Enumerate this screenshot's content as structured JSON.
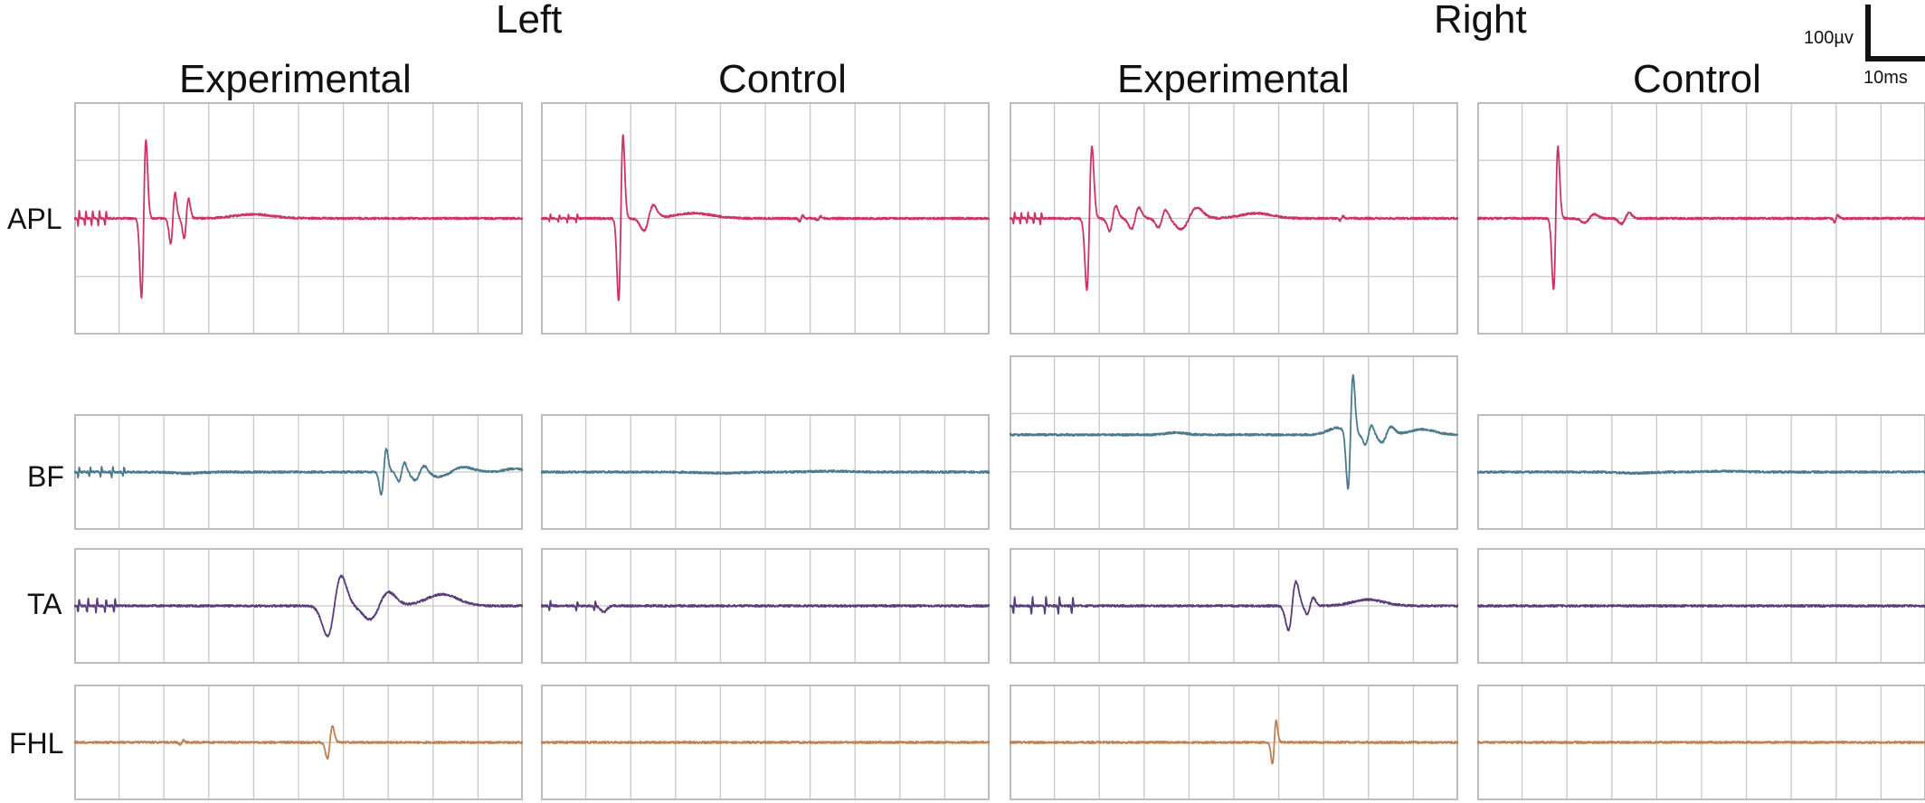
{
  "figure": {
    "sides": [
      "Left",
      "Right"
    ],
    "conditions": [
      "Experimental",
      "Control",
      "Experimental",
      "Control"
    ],
    "muscles": [
      "APL",
      "BF",
      "TA",
      "FHL"
    ],
    "scale_bar": {
      "voltage": "100µv",
      "time": "10ms"
    }
  },
  "colors": {
    "APL": "#cc3366",
    "BF": "#4a7a8c",
    "TA": "#5a3d7a",
    "FHL": "#c08050",
    "grid": "#c8c8c8",
    "frame": "#bdbdbd"
  },
  "chart_data": {
    "type": "line",
    "x_unit": "ms",
    "y_unit": "µV",
    "grid": true,
    "panels": [
      {
        "muscle": "APL",
        "side": "Left",
        "condition": "Experimental",
        "stim_artifacts": {
          "t": [
            1,
            2.5,
            4,
            5.5,
            7
          ],
          "amp": 20
        },
        "waves": [
          {
            "t": 15.5,
            "amp": 220,
            "w": 0.7,
            "shape": "biphasic"
          },
          {
            "t": 22,
            "amp": 70,
            "w": 0.7,
            "shape": "biphasic"
          },
          {
            "t": 25,
            "amp": 55,
            "w": 0.7,
            "shape": "biphasic"
          },
          {
            "t": 40,
            "amp": 8,
            "w": 6,
            "shape": "gauss"
          }
        ]
      },
      {
        "muscle": "APL",
        "side": "Left",
        "condition": "Control",
        "stim_artifacts": {
          "t": [
            2,
            4,
            6,
            8
          ],
          "amp": 10
        },
        "waves": [
          {
            "t": 17.8,
            "amp": 230,
            "w": 0.7,
            "shape": "biphasic"
          },
          {
            "t": 24,
            "amp": 35,
            "w": 1.5,
            "shape": "biphasic"
          },
          {
            "t": 34,
            "amp": 10,
            "w": 6,
            "shape": "gauss"
          },
          {
            "t": 58,
            "amp": 8,
            "w": 0.5,
            "shape": "biphasic"
          },
          {
            "t": 62,
            "amp": 6,
            "w": 0.5,
            "shape": "biphasic"
          }
        ]
      },
      {
        "muscle": "APL",
        "side": "Right",
        "condition": "Experimental",
        "stim_artifacts": {
          "t": [
            1,
            2.5,
            4,
            5.5,
            7
          ],
          "amp": 15
        },
        "waves": [
          {
            "t": 17.8,
            "amp": 200,
            "w": 0.8,
            "shape": "biphasic"
          },
          {
            "t": 23,
            "amp": 35,
            "w": 1,
            "shape": "biphasic"
          },
          {
            "t": 28,
            "amp": 30,
            "w": 1.2,
            "shape": "biphasic"
          },
          {
            "t": 34,
            "amp": 25,
            "w": 1.2,
            "shape": "biphasic"
          },
          {
            "t": 40,
            "amp": 30,
            "w": 2.5,
            "shape": "biphasic"
          },
          {
            "t": 55,
            "amp": 10,
            "w": 5,
            "shape": "gauss"
          },
          {
            "t": 74,
            "amp": 6,
            "w": 0.5,
            "shape": "biphasic"
          }
        ]
      },
      {
        "muscle": "APL",
        "side": "Right",
        "condition": "Control",
        "stim_artifacts": {
          "t": [],
          "amp": 0
        },
        "waves": [
          {
            "t": 17.5,
            "amp": 200,
            "w": 0.7,
            "shape": "biphasic"
          },
          {
            "t": 25,
            "amp": 12,
            "w": 1.5,
            "shape": "biphasic"
          },
          {
            "t": 33,
            "amp": 15,
            "w": 1.2,
            "shape": "biphasic"
          },
          {
            "t": 80,
            "amp": 10,
            "w": 0.5,
            "shape": "biphasic"
          }
        ]
      },
      {
        "muscle": "BF",
        "side": "Left",
        "condition": "Experimental",
        "stim_artifacts": {
          "t": [
            1,
            3.5,
            6,
            8.5,
            11
          ],
          "amp": 25
        },
        "waves": [
          {
            "t": 25,
            "amp": -5,
            "w": 4,
            "shape": "gauss"
          },
          {
            "t": 69,
            "amp": 120,
            "w": 0.8,
            "shape": "biphasic"
          },
          {
            "t": 73,
            "amp": 50,
            "w": 0.9,
            "shape": "biphasic"
          },
          {
            "t": 77,
            "amp": 40,
            "w": 1.5,
            "shape": "biphasic"
          },
          {
            "t": 84,
            "amp": 25,
            "w": 4,
            "shape": "biphasic"
          },
          {
            "t": 98,
            "amp": 12,
            "w": 3,
            "shape": "gauss"
          }
        ]
      },
      {
        "muscle": "BF",
        "side": "Left",
        "condition": "Control",
        "stim_artifacts": {
          "t": [],
          "amp": 0
        },
        "waves": [
          {
            "t": 40,
            "amp": -4,
            "w": 6,
            "shape": "gauss"
          },
          {
            "t": 65,
            "amp": 3,
            "w": 6,
            "shape": "gauss"
          }
        ]
      },
      {
        "muscle": "BF",
        "side": "Right",
        "condition": "Experimental",
        "stim_artifacts": {
          "t": [],
          "amp": 0
        },
        "waves": [
          {
            "t": 37,
            "amp": 8,
            "w": 3,
            "shape": "gauss"
          },
          {
            "t": 73,
            "amp": 25,
            "w": 3,
            "shape": "gauss"
          },
          {
            "t": 76,
            "amp": 300,
            "w": 0.8,
            "shape": "biphasic"
          },
          {
            "t": 80,
            "amp": 50,
            "w": 1,
            "shape": "biphasic"
          },
          {
            "t": 84,
            "amp": 40,
            "w": 1.5,
            "shape": "biphasic"
          },
          {
            "t": 92,
            "amp": 20,
            "w": 4,
            "shape": "gauss"
          }
        ]
      },
      {
        "muscle": "BF",
        "side": "Right",
        "condition": "Control",
        "stim_artifacts": {
          "t": [],
          "amp": 0
        },
        "waves": [
          {
            "t": 35,
            "amp": -4,
            "w": 5,
            "shape": "gauss"
          },
          {
            "t": 55,
            "amp": 3,
            "w": 6,
            "shape": "gauss"
          }
        ]
      },
      {
        "muscle": "TA",
        "side": "Left",
        "condition": "Experimental",
        "stim_artifacts": {
          "t": [
            1,
            3,
            5,
            7,
            9
          ],
          "amp": 12
        },
        "waves": [
          {
            "t": 58,
            "amp": 55,
            "w": 2.2,
            "shape": "biphasic"
          },
          {
            "t": 68,
            "amp": 25,
            "w": 3,
            "shape": "biphasic"
          },
          {
            "t": 82,
            "amp": 15,
            "w": 5,
            "shape": "gauss"
          }
        ]
      },
      {
        "muscle": "TA",
        "side": "Left",
        "condition": "Control",
        "stim_artifacts": {
          "t": [
            2,
            8,
            12
          ],
          "amp": 8
        },
        "waves": [
          {
            "t": 14,
            "amp": -8,
            "w": 1,
            "shape": "gauss"
          }
        ]
      },
      {
        "muscle": "TA",
        "side": "Right",
        "condition": "Experimental",
        "stim_artifacts": {
          "t": [
            1,
            5,
            8,
            11,
            14
          ],
          "amp": 15
        },
        "waves": [
          {
            "t": 63,
            "amp": 45,
            "w": 1.2,
            "shape": "biphasic"
          },
          {
            "t": 67,
            "amp": 15,
            "w": 1,
            "shape": "biphasic"
          },
          {
            "t": 80,
            "amp": 8,
            "w": 5,
            "shape": "gauss"
          }
        ]
      },
      {
        "muscle": "TA",
        "side": "Right",
        "condition": "Control",
        "stim_artifacts": {
          "t": [],
          "amp": 0
        },
        "waves": []
      },
      {
        "muscle": "FHL",
        "side": "Left",
        "condition": "Experimental",
        "stim_artifacts": {
          "t": [],
          "amp": 0
        },
        "waves": [
          {
            "t": 57,
            "amp": 30,
            "w": 0.8,
            "shape": "biphasic"
          },
          {
            "t": 24,
            "amp": 4,
            "w": 0.5,
            "shape": "biphasic"
          }
        ]
      },
      {
        "muscle": "FHL",
        "side": "Left",
        "condition": "Control",
        "stim_artifacts": {
          "t": [],
          "amp": 0
        },
        "waves": []
      },
      {
        "muscle": "FHL",
        "side": "Right",
        "condition": "Experimental",
        "stim_artifacts": {
          "t": [],
          "amp": 0
        },
        "waves": [
          {
            "t": 59,
            "amp": 40,
            "w": 0.6,
            "shape": "biphasic"
          }
        ]
      },
      {
        "muscle": "FHL",
        "side": "Right",
        "condition": "Control",
        "stim_artifacts": {
          "t": [],
          "amp": 0
        },
        "waves": []
      }
    ]
  }
}
